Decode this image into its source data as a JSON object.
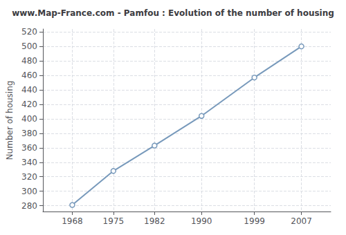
{
  "chart_data": {
    "type": "line",
    "title": "www.Map-France.com - Pamfou : Evolution of the number of housing",
    "ylabel": "Number of housing",
    "x": [
      1968,
      1975,
      1982,
      1990,
      1999,
      2007
    ],
    "values": [
      281,
      328,
      363,
      404,
      457,
      500
    ],
    "color": "#7799bb",
    "marker": "circle",
    "xlim": [
      1963,
      2012
    ],
    "ylim": [
      272,
      524
    ],
    "xticks": [
      1968,
      1975,
      1982,
      1990,
      1999,
      2007
    ],
    "yticks": [
      280,
      300,
      320,
      340,
      360,
      380,
      400,
      420,
      440,
      460,
      480,
      500,
      520
    ],
    "grid": true
  }
}
